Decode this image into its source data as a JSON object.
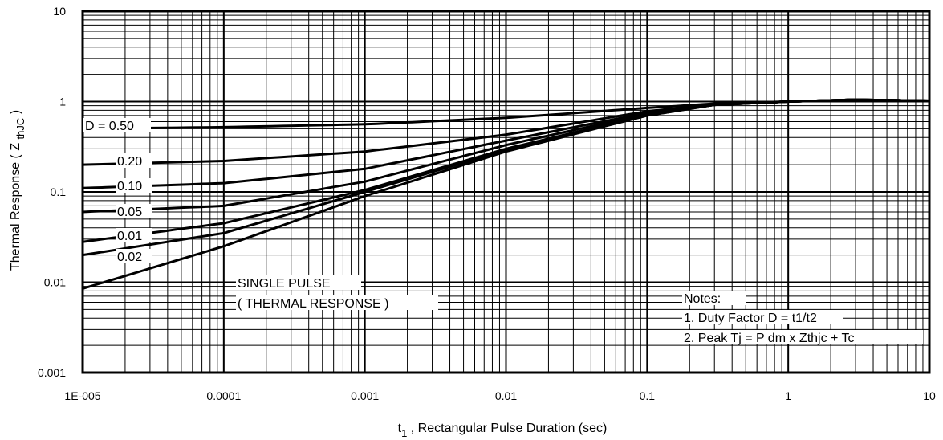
{
  "chart_data": {
    "type": "line",
    "title": "",
    "xlabel": {
      "main": "t",
      "sub": "1",
      "rest": " , Rectangular Pulse Duration (sec)"
    },
    "ylabel": {
      "main": "Thermal Response ( Z ",
      "sub": "thJC",
      "rest": " )"
    },
    "x_scale": "log",
    "y_scale": "log",
    "xlim": [
      1e-05,
      10
    ],
    "ylim": [
      0.001,
      10
    ],
    "grid": true,
    "x_ticks": [
      "1E-005",
      "0.0001",
      "0.001",
      "0.01",
      "0.1",
      "1",
      "10"
    ],
    "y_ticks": [
      "0.001",
      "0.01",
      "0.1",
      "1",
      "10"
    ],
    "series": [
      {
        "name": "D = 0.50",
        "x": [
          1e-05,
          0.0001,
          0.001,
          0.01,
          0.1,
          0.3,
          1,
          3,
          10
        ],
        "y": [
          0.5,
          0.52,
          0.56,
          0.66,
          0.85,
          0.95,
          1.0,
          1.05,
          1.02
        ]
      },
      {
        "name": "0.20",
        "x": [
          1e-05,
          0.0001,
          0.001,
          0.01,
          0.1,
          0.3,
          1,
          3,
          10
        ],
        "y": [
          0.2,
          0.22,
          0.28,
          0.43,
          0.78,
          0.93,
          1.0,
          1.05,
          1.02
        ]
      },
      {
        "name": "0.10",
        "x": [
          1e-05,
          0.0001,
          0.001,
          0.01,
          0.1,
          0.3,
          1,
          3,
          10
        ],
        "y": [
          0.11,
          0.125,
          0.18,
          0.37,
          0.75,
          0.93,
          1.0,
          1.05,
          1.02
        ]
      },
      {
        "name": "0.05",
        "x": [
          1e-05,
          0.0001,
          0.001,
          0.01,
          0.1,
          0.3,
          1,
          3,
          10
        ],
        "y": [
          0.06,
          0.07,
          0.13,
          0.33,
          0.73,
          0.92,
          1.0,
          1.05,
          1.02
        ]
      },
      {
        "name": "0.01",
        "x": [
          1e-05,
          0.0001,
          0.001,
          0.01,
          0.1,
          0.3,
          1,
          3,
          10
        ],
        "y": [
          0.028,
          0.045,
          0.105,
          0.3,
          0.71,
          0.92,
          1.0,
          1.05,
          1.02
        ]
      },
      {
        "name": "0.02",
        "x": [
          1e-05,
          0.0001,
          0.001,
          0.01,
          0.1,
          0.3,
          1,
          3,
          10
        ],
        "y": [
          0.02,
          0.035,
          0.1,
          0.29,
          0.7,
          0.92,
          1.0,
          1.05,
          1.02
        ]
      },
      {
        "name": "SINGLE PULSE",
        "x": [
          1e-05,
          0.0001,
          0.001,
          0.01,
          0.1,
          0.3,
          1,
          3,
          10
        ],
        "y": [
          0.0085,
          0.025,
          0.09,
          0.28,
          0.7,
          0.92,
          1.0,
          1.05,
          1.02
        ]
      }
    ],
    "series_labels": {
      "d050": "D = 0.50",
      "d020": "0.20",
      "d010": "0.10",
      "d005": "0.05",
      "d001": "0.01",
      "d002": "0.02",
      "single1": "SINGLE PULSE",
      "single2": "( THERMAL RESPONSE )"
    },
    "notes": [
      "Notes:",
      "1. Duty Factor D = t1/t2",
      "2. Peak Tj = P dm x Zthjc + Tc"
    ]
  }
}
